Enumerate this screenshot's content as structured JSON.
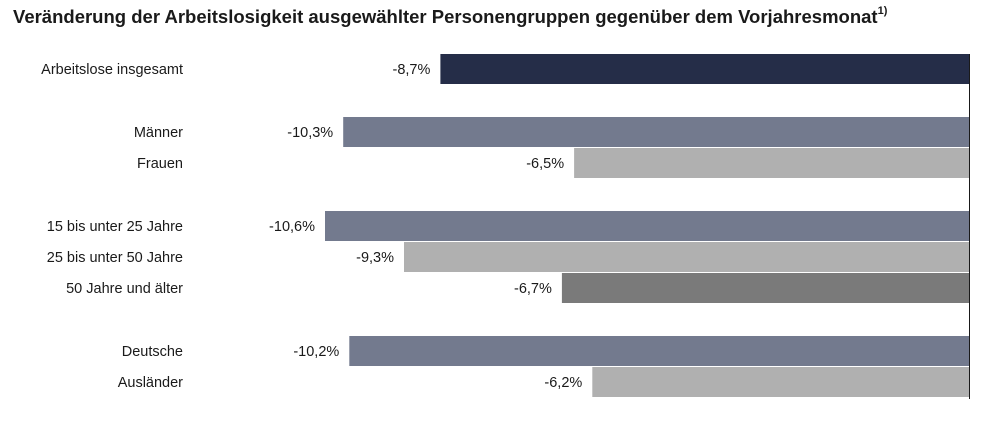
{
  "chart_data": {
    "type": "bar",
    "orientation": "horizontal",
    "title": "Veränderung der Arbeitslosigkeit ausgewählter Personengruppen gegenüber dem Vorjahresmonat",
    "title_footnote": "1)",
    "categories": [
      "Arbeitslose insgesamt",
      "Männer",
      "Frauen",
      "15 bis unter 25 Jahre",
      "25 bis unter 50 Jahre",
      "50 Jahre und älter",
      "Deutsche",
      "Ausländer"
    ],
    "values": [
      -8.7,
      -10.3,
      -6.5,
      -10.6,
      -9.3,
      -6.7,
      -10.2,
      -6.2
    ],
    "value_labels": [
      "-8,7%",
      "-10,3%",
      "-6,5%",
      "-10,6%",
      "-9,3%",
      "-6,7%",
      "-10,2%",
      "-6,2%"
    ],
    "groups": [
      0,
      1,
      1,
      2,
      2,
      2,
      3,
      3
    ],
    "colors": [
      "#252d48",
      "#737a8e",
      "#b0b0b0",
      "#737a8e",
      "#b0b0b0",
      "#7a7a7a",
      "#737a8e",
      "#b0b0b0"
    ],
    "xlim": [
      -10.6,
      0
    ],
    "grid": false,
    "legend": "none"
  }
}
